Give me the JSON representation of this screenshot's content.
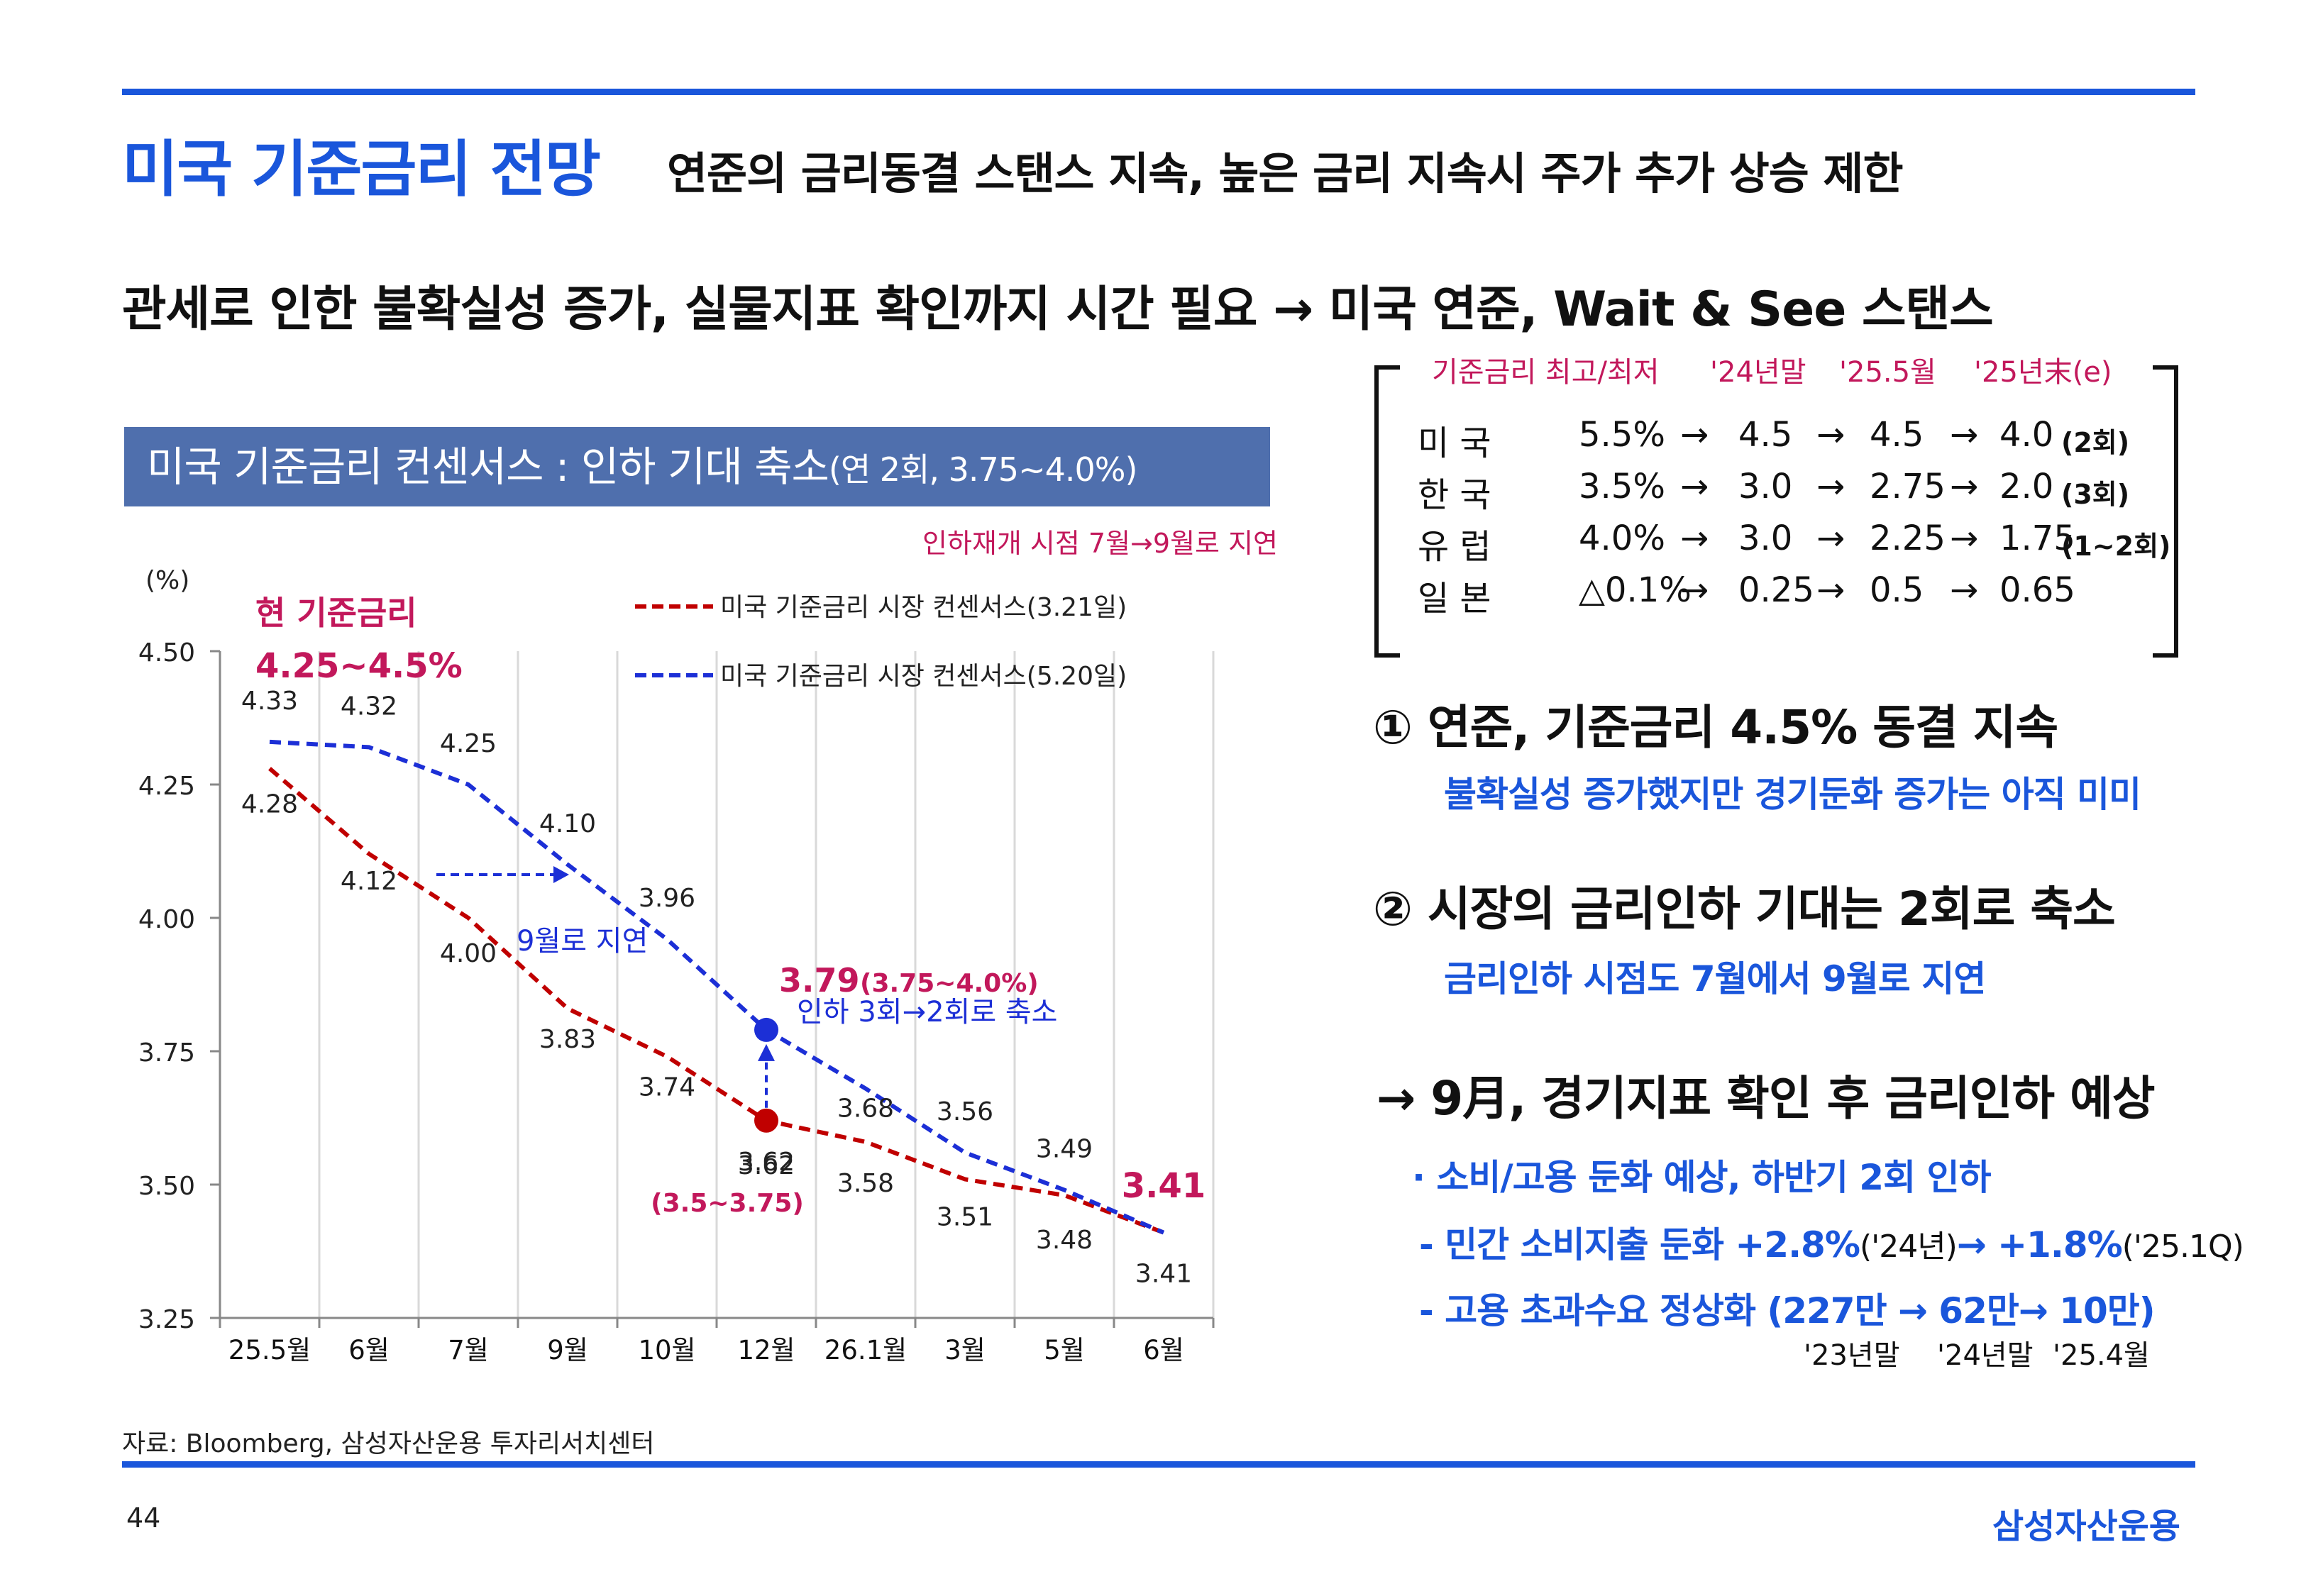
{
  "header": {
    "title": "미국 기준금리 전망",
    "subtitle": "연준의 금리동결 스탠스 지속, 높은 금리 지속시 주가 추가 상승 제한",
    "headline": "관세로 인한 불확실성 증가, 실물지표 확인까지 시간 필요 → 미국 연준, Wait & See 스탠스"
  },
  "colors": {
    "accent": "#1a56db",
    "banner": "#4f6fad",
    "magenta": "#c2185b",
    "red_series": "#c00000",
    "blue_series": "#1c2fd6"
  },
  "chart_banner": {
    "main": "미국 기준금리 컨센서스 : 인하 기대 축소",
    "small": "(연 2회, 3.75~4.0%)"
  },
  "delay_note": "인하재개 시점 7월→9월로 지연",
  "chart_data": {
    "type": "line",
    "ylabel": "(%)",
    "ylim": [
      3.25,
      4.5
    ],
    "yticks": [
      "4.50",
      "4.25",
      "4.00",
      "3.75",
      "3.50",
      "3.25"
    ],
    "categories": [
      "25.5월",
      "6월",
      "7월",
      "9월",
      "10월",
      "12월",
      "26.1월",
      "3월",
      "5월",
      "6월"
    ],
    "series": [
      {
        "name": "미국 기준금리 시장 컨센서스(3.21일)",
        "color": "red",
        "style": "dashed",
        "values": [
          4.28,
          4.12,
          4.0,
          3.83,
          3.74,
          3.62,
          3.58,
          3.51,
          3.48,
          3.41
        ],
        "labels": [
          "4.28",
          "4.12",
          "4.00",
          "3.83",
          "3.74",
          "3.62",
          "3.58",
          "3.51",
          "3.48",
          "3.41"
        ]
      },
      {
        "name": "미국 기준금리 시장 컨센서스(5.20일)",
        "color": "blue",
        "style": "dashed",
        "values": [
          4.33,
          4.32,
          4.25,
          4.1,
          3.96,
          3.79,
          3.68,
          3.56,
          3.49,
          3.41
        ],
        "labels": [
          "4.33",
          "4.32",
          "4.25",
          "4.10",
          "3.96",
          "3.79",
          "3.68",
          "3.56",
          "3.49",
          "3.41"
        ]
      }
    ],
    "annotations": {
      "current_rate_label": "현 기준금리",
      "current_rate_value": "4.25~4.5%",
      "delay_label": "9월로 지연",
      "blue_dec_value": "3.79",
      "blue_dec_range": "(3.75~4.0%)",
      "cut_change": "인하 3회→2회로 축소",
      "red_dec_range": "(3.5~3.75)",
      "end_value": "3.41"
    }
  },
  "rate_table": {
    "header": [
      "기준금리 최고/최저",
      "'24년말",
      "'25.5월",
      "'25년末(e)"
    ],
    "arrow": "→",
    "rows": [
      {
        "country": "미  국",
        "v": [
          "5.5%",
          "4.5",
          "4.5",
          "4.0"
        ],
        "note": "(2회)"
      },
      {
        "country": "한  국",
        "v": [
          "3.5%",
          "3.0",
          "2.75",
          "2.0"
        ],
        "note": "(3회)"
      },
      {
        "country": "유  럽",
        "v": [
          "4.0%",
          "3.0",
          "2.25",
          "1.75"
        ],
        "note": "(1~2회)"
      },
      {
        "country": "일  본",
        "v": [
          "△0.1%",
          "0.25",
          "0.5",
          "0.65"
        ],
        "note": ""
      }
    ]
  },
  "points": [
    {
      "title": "①  연준, 기준금리 4.5% 동결 지속",
      "sub": "불확실성 증가했지만 경기둔화 증가는 아직 미미"
    },
    {
      "title": "②  시장의 금리인하 기대는 2회로 축소",
      "sub": "금리인하 시점도 7월에서 9월로 지연"
    }
  ],
  "conclusion": "→ 9月, 경기지표 확인 후 금리인하 예상",
  "bullets": {
    "b1": "· 소비/고용 둔화 예상, 하반기 2회 인하",
    "b2_a": "- 민간 소비지출 둔화 +2.8%",
    "b2_b": "('24년)",
    "b2_c": "→ +1.8%",
    "b2_d": "('25.1Q)",
    "b3": "- 고용 초과수요 정상화 (227만 → 62만→ 10만)",
    "years": [
      "'23년말",
      "'24년말",
      "'25.4월"
    ]
  },
  "footer": {
    "source": "자료: Bloomberg, 삼성자산운용 투자리서치센터",
    "page": "44",
    "brand": "삼성자산운용"
  }
}
